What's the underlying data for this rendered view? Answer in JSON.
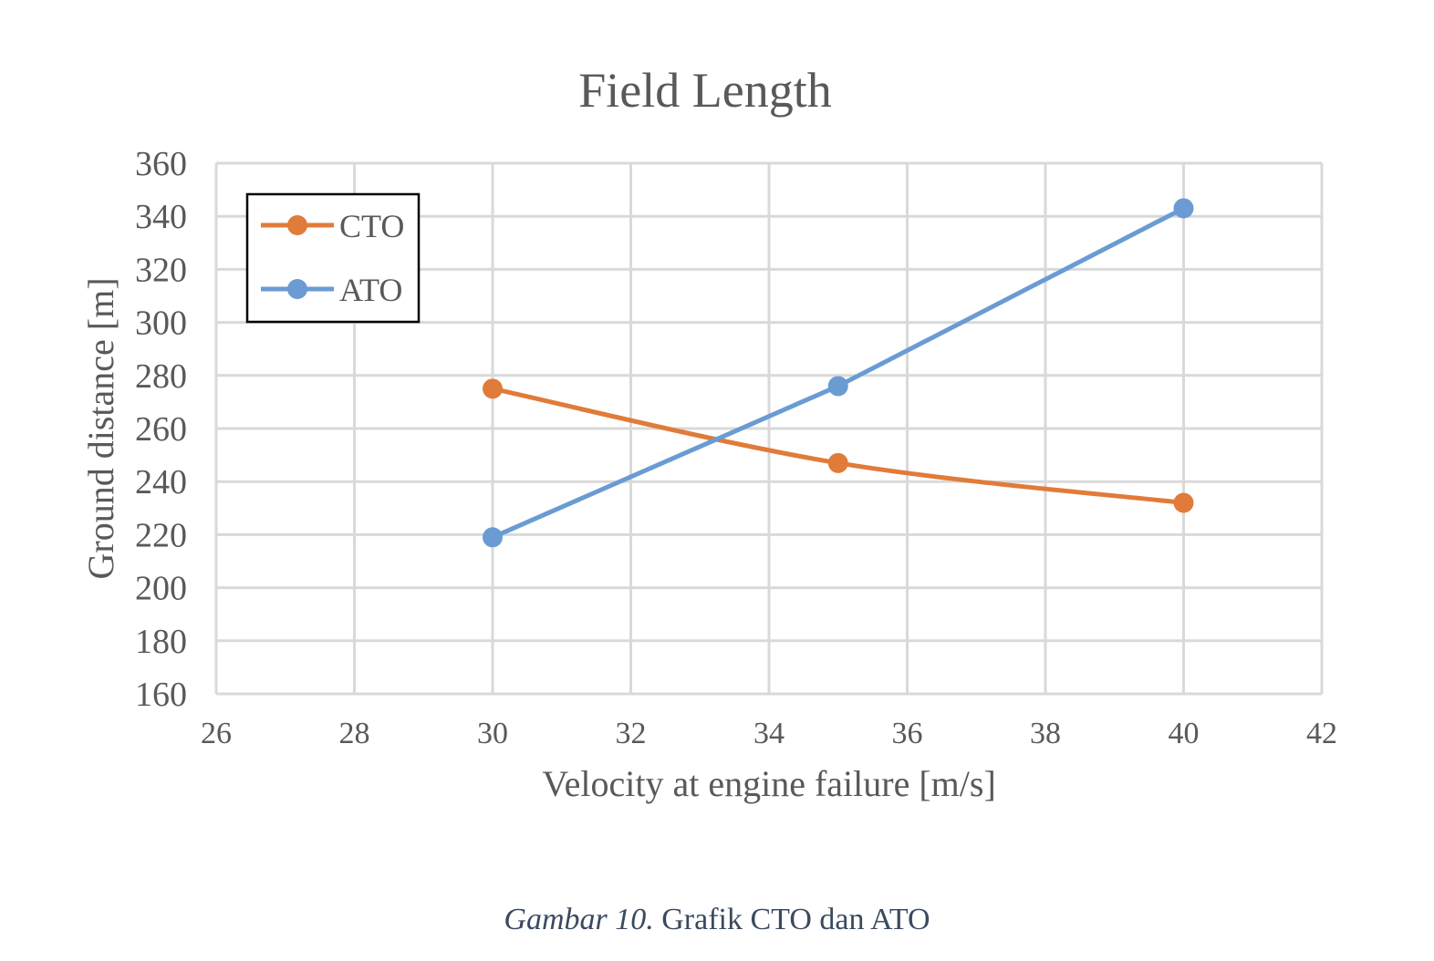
{
  "chart_data": {
    "type": "line",
    "title": "Field Length",
    "xlabel": "Velocity at engine failure [m/s]",
    "ylabel": "Ground distance [m]",
    "xlim": [
      26,
      42
    ],
    "ylim": [
      160,
      360
    ],
    "xticks": [
      26,
      28,
      30,
      32,
      34,
      36,
      38,
      40,
      42
    ],
    "yticks": [
      160,
      180,
      200,
      220,
      240,
      260,
      280,
      300,
      320,
      340,
      360
    ],
    "grid": true,
    "legend_position": "top-left",
    "series": [
      {
        "name": "CTO",
        "color": "#E07B39",
        "x": [
          30,
          35,
          40
        ],
        "y": [
          275,
          247,
          232
        ]
      },
      {
        "name": "ATO",
        "color": "#6A9BD3",
        "x": [
          30,
          35,
          40
        ],
        "y": [
          219,
          276,
          343
        ]
      }
    ]
  },
  "caption": {
    "lead": "Gambar 10.",
    "text": " Grafik CTO dan ATO"
  }
}
